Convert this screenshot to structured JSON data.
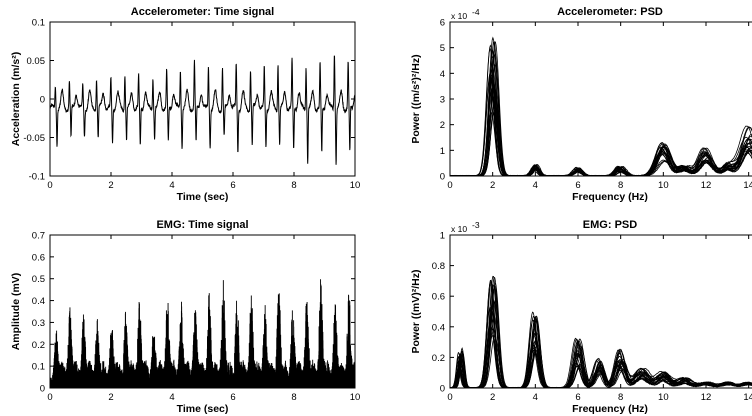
{
  "chart_data": [
    {
      "id": "acc-time",
      "type": "line",
      "title": "Accelerometer: Time signal",
      "xlabel": "Time (sec)",
      "ylabel": "Acceleration (m/s²)",
      "xlim": [
        0,
        10
      ],
      "ylim": [
        -0.1,
        0.1
      ],
      "xticks": [
        0,
        2,
        4,
        6,
        8,
        10
      ],
      "yticks": [
        -0.1,
        -0.05,
        0,
        0.05,
        0.1
      ],
      "xtick_labels": [
        "0",
        "2",
        "4",
        "6",
        "8",
        "10"
      ],
      "ytick_labels": [
        "-0.1",
        "-0.05",
        "0",
        "0.05",
        "0.1"
      ],
      "grid": false,
      "signal": {
        "beat_times": [
          0.2,
          0.66,
          1.1,
          1.55,
          2.02,
          2.48,
          2.93,
          3.4,
          3.85,
          4.3,
          4.76,
          5.22,
          5.68,
          6.13,
          6.6,
          7.05,
          7.5,
          7.96,
          8.42,
          8.88,
          9.35,
          9.8
        ],
        "peak_values": [
          0.03,
          0.035,
          0.03,
          0.04,
          0.038,
          0.045,
          0.04,
          0.042,
          0.048,
          0.05,
          0.06,
          0.055,
          0.052,
          0.058,
          0.05,
          0.052,
          0.06,
          0.062,
          0.055,
          0.058,
          0.075,
          0.06
        ],
        "trough_values": [
          -0.045,
          -0.04,
          -0.035,
          -0.04,
          -0.045,
          -0.04,
          -0.05,
          -0.04,
          -0.045,
          -0.05,
          -0.045,
          -0.05,
          -0.04,
          -0.055,
          -0.05,
          -0.05,
          -0.045,
          -0.055,
          -0.07,
          -0.06,
          -0.07,
          -0.06
        ]
      }
    },
    {
      "id": "acc-psd",
      "type": "line",
      "title": "Accelerometer: PSD",
      "xlabel": "Frequency (Hz)",
      "ylabel": "Power ((m/s²)²/Hz)",
      "xlim": [
        0,
        15
      ],
      "ylim": [
        0,
        6
      ],
      "y_multiplier": "x 10",
      "y_multiplier_exponent": "-4",
      "xticks": [
        0,
        2,
        4,
        6,
        8,
        10,
        12,
        14
      ],
      "yticks": [
        0,
        1,
        2,
        3,
        4,
        5,
        6
      ],
      "xtick_labels": [
        "0",
        "2",
        "4",
        "6",
        "8",
        "10",
        "12",
        "14"
      ],
      "ytick_labels": [
        "0",
        "1",
        "2",
        "3",
        "4",
        "5",
        "6"
      ],
      "grid": false,
      "n_traces": 22,
      "peaks": [
        {
          "f": 2.0,
          "amp": 4.25,
          "w": 0.18
        },
        {
          "f": 4.0,
          "amp": 0.35,
          "w": 0.15
        },
        {
          "f": 6.0,
          "amp": 0.25,
          "w": 0.18
        },
        {
          "f": 8.0,
          "amp": 0.28,
          "w": 0.2
        },
        {
          "f": 10.0,
          "amp": 1.0,
          "w": 0.3
        },
        {
          "f": 11.0,
          "amp": 0.3,
          "w": 0.25
        },
        {
          "f": 12.0,
          "amp": 0.85,
          "w": 0.3
        },
        {
          "f": 13.0,
          "amp": 0.35,
          "w": 0.25
        },
        {
          "f": 14.0,
          "amp": 1.6,
          "w": 0.35
        }
      ]
    },
    {
      "id": "emg-time",
      "type": "line",
      "title": "EMG: Time signal",
      "xlabel": "Time (sec)",
      "ylabel": "Amplitude (mV)",
      "xlim": [
        0,
        10
      ],
      "ylim": [
        0,
        0.7
      ],
      "xticks": [
        0,
        2,
        4,
        6,
        8,
        10
      ],
      "yticks": [
        0,
        0.1,
        0.2,
        0.3,
        0.4,
        0.5,
        0.6,
        0.7
      ],
      "xtick_labels": [
        "0",
        "2",
        "4",
        "6",
        "8",
        "10"
      ],
      "ytick_labels": [
        "0",
        "0.1",
        "0.2",
        "0.3",
        "0.4",
        "0.5",
        "0.6",
        "0.7"
      ],
      "grid": false,
      "signal": {
        "burst_times": [
          0.2,
          0.65,
          1.1,
          1.55,
          2.02,
          2.48,
          2.93,
          3.4,
          3.85,
          4.3,
          4.76,
          5.22,
          5.68,
          6.13,
          6.6,
          7.05,
          7.5,
          7.96,
          8.42,
          8.88,
          9.35,
          9.8
        ],
        "burst_peaks": [
          0.28,
          0.38,
          0.34,
          0.32,
          0.3,
          0.36,
          0.42,
          0.3,
          0.46,
          0.4,
          0.38,
          0.44,
          0.5,
          0.43,
          0.44,
          0.38,
          0.5,
          0.39,
          0.43,
          0.51,
          0.4,
          0.45
        ]
      }
    },
    {
      "id": "emg-psd",
      "type": "line",
      "title": "EMG: PSD",
      "xlabel": "Frequency (Hz)",
      "ylabel": "Power ((mV)²/Hz)",
      "xlim": [
        0,
        15
      ],
      "ylim": [
        0,
        1
      ],
      "y_multiplier": "x 10",
      "y_multiplier_exponent": "-3",
      "xticks": [
        0,
        2,
        4,
        6,
        8,
        10,
        12,
        14
      ],
      "yticks": [
        0,
        0.2,
        0.4,
        0.6,
        0.8,
        1
      ],
      "xtick_labels": [
        "0",
        "2",
        "4",
        "6",
        "8",
        "10",
        "12",
        "14"
      ],
      "ytick_labels": [
        "0",
        "0.2",
        "0.4",
        "0.6",
        "0.8",
        "1"
      ],
      "grid": false,
      "n_traces": 22,
      "peaks": [
        {
          "f": 0.5,
          "amp": 0.2,
          "w": 0.1
        },
        {
          "f": 2.0,
          "amp": 0.6,
          "w": 0.18
        },
        {
          "f": 4.0,
          "amp": 0.4,
          "w": 0.18
        },
        {
          "f": 6.0,
          "amp": 0.25,
          "w": 0.2
        },
        {
          "f": 7.0,
          "amp": 0.15,
          "w": 0.2
        },
        {
          "f": 8.0,
          "amp": 0.2,
          "w": 0.22
        },
        {
          "f": 9.0,
          "amp": 0.1,
          "w": 0.3
        },
        {
          "f": 10.0,
          "amp": 0.08,
          "w": 0.3
        },
        {
          "f": 11.0,
          "amp": 0.05,
          "w": 0.3
        },
        {
          "f": 12.0,
          "amp": 0.03,
          "w": 0.3
        },
        {
          "f": 13.0,
          "amp": 0.03,
          "w": 0.3
        },
        {
          "f": 14.0,
          "amp": 0.03,
          "w": 0.3
        }
      ]
    }
  ]
}
